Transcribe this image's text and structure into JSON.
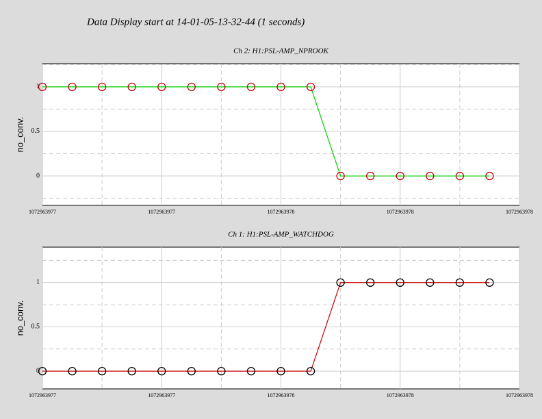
{
  "title": "Data Display start at 14-01-05-13-32-44 (1 seconds)",
  "chart_data": [
    {
      "type": "line",
      "title": "Ch 2: H1:PSL-AMP_NPROOK",
      "ylabel": "no_conv.",
      "x": [
        1072963977,
        1072963977.0625,
        1072963977.125,
        1072963977.1875,
        1072963977.25,
        1072963977.3125,
        1072963977.375,
        1072963977.4375,
        1072963977.5,
        1072963977.5625,
        1072963977.625,
        1072963977.6875,
        1072963977.75,
        1072963977.8125,
        1072963977.875,
        1072963977.9375
      ],
      "series": [
        {
          "color": "#00cc00",
          "marker_color": "#cc0000",
          "values": [
            1,
            1,
            1,
            1,
            1,
            1,
            1,
            1,
            1,
            1,
            0,
            0,
            0,
            0,
            0,
            0
          ]
        }
      ],
      "xlim": [
        1072963977,
        1072963978
      ],
      "xticks": [
        1072963977,
        {
          "value": 1072963977.25,
          "label": "1072963977"
        },
        {
          "value": 1072963977.5,
          "label": "1072963978"
        },
        {
          "value": 1072963977.75,
          "label": "1072963978"
        },
        1072963978
      ],
      "xminor": [
        1072963977.125,
        1072963977.375,
        1072963977.625,
        1072963977.875
      ],
      "ylim": [
        -0.33,
        1.26
      ],
      "yticks": [
        0,
        0.5,
        1
      ],
      "yminor": [
        -0.25,
        0.25,
        0.75,
        1.25
      ],
      "grid": true
    },
    {
      "type": "line",
      "title": "Ch 1: H1:PSL-AMP_WATCHDOG",
      "ylabel": "no_conv.",
      "x": [
        1072963977,
        1072963977.0625,
        1072963977.125,
        1072963977.1875,
        1072963977.25,
        1072963977.3125,
        1072963977.375,
        1072963977.4375,
        1072963977.5,
        1072963977.5625,
        1072963977.625,
        1072963977.6875,
        1072963977.75,
        1072963977.8125,
        1072963977.875,
        1072963977.9375
      ],
      "series": [
        {
          "color": "#cc0000",
          "marker_color": "#000000",
          "values": [
            0,
            0,
            0,
            0,
            0,
            0,
            0,
            0,
            0,
            0,
            1,
            1,
            1,
            1,
            1,
            1
          ]
        }
      ],
      "xlim": [
        1072963977,
        1072963978
      ],
      "xticks": [
        1072963977,
        {
          "value": 1072963977.25,
          "label": "1072963977"
        },
        {
          "value": 1072963977.5,
          "label": "1072963978"
        },
        {
          "value": 1072963977.75,
          "label": "1072963978"
        },
        1072963978
      ],
      "xminor": [
        1072963977.125,
        1072963977.375,
        1072963977.625,
        1072963977.875
      ],
      "ylim": [
        -0.2,
        1.4
      ],
      "yticks": [
        0,
        0.5,
        1
      ],
      "yminor": [
        -0.25,
        0.25,
        0.75,
        1.25
      ],
      "grid": true
    }
  ]
}
